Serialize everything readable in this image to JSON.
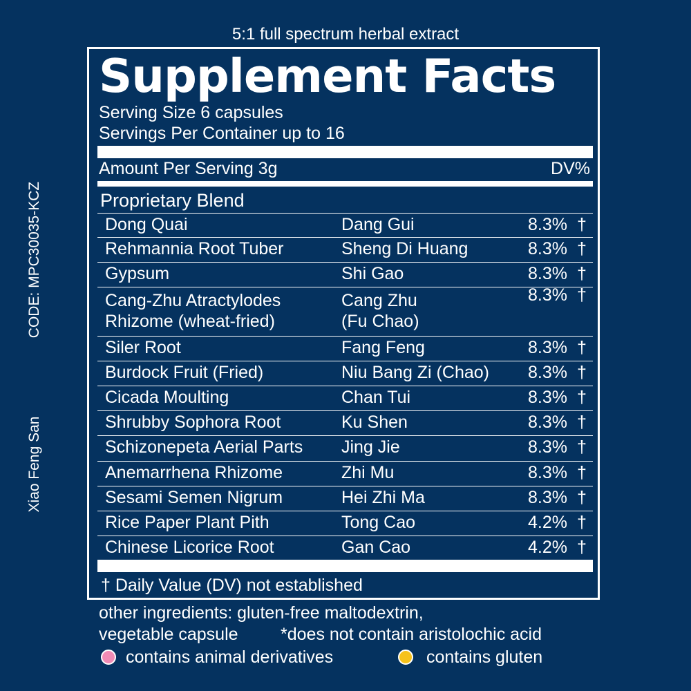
{
  "tagline": "5:1 full spectrum herbal extract",
  "side": {
    "code": "CODE: MPC30035-KCZ",
    "formula_name": "Xiao Feng San"
  },
  "panel": {
    "title": "Supplement Facts",
    "serving_size": "Serving Size 6 capsules",
    "servings_per_container": "Servings Per Container up to 16",
    "amount_per_serving": "Amount Per Serving 3g",
    "dv_header": "DV%",
    "blend_label": "Proprietary Blend",
    "ingredients": [
      {
        "name": "Dong Quai",
        "pinyin": "Dang Gui",
        "dv": "8.3%",
        "mark": "†"
      },
      {
        "name": "Rehmannia Root Tuber",
        "pinyin": "Sheng Di Huang",
        "dv": "8.3%",
        "mark": "†"
      },
      {
        "name": "Gypsum",
        "pinyin": "Shi Gao",
        "dv": "8.3%",
        "mark": "†"
      },
      {
        "name": "Cang-Zhu Atractylodes",
        "name2": "Rhizome (wheat-fried)",
        "pinyin": "Cang Zhu",
        "pinyin2": "(Fu Chao)",
        "dv": "8.3%",
        "mark": "†"
      },
      {
        "name": "Siler Root",
        "pinyin": "Fang Feng",
        "dv": "8.3%",
        "mark": "†"
      },
      {
        "name": "Burdock Fruit (Fried)",
        "pinyin": "Niu Bang Zi (Chao)",
        "dv": "8.3%",
        "mark": "†"
      },
      {
        "name": "Cicada Moulting",
        "pinyin": "Chan Tui",
        "dv": "8.3%",
        "mark": "†"
      },
      {
        "name": "Shrubby Sophora Root",
        "pinyin": "Ku Shen",
        "dv": "8.3%",
        "mark": "†"
      },
      {
        "name": "Schizonepeta Aerial Parts",
        "pinyin": "Jing Jie",
        "dv": "8.3%",
        "mark": "†"
      },
      {
        "name": "Anemarrhena Rhizome",
        "pinyin": "Zhi Mu",
        "dv": "8.3%",
        "mark": "†"
      },
      {
        "name": "Sesami Semen Nigrum",
        "pinyin": "Hei Zhi Ma",
        "dv": "8.3%",
        "mark": "†"
      },
      {
        "name": "Rice Paper Plant Pith",
        "pinyin": "Tong Cao",
        "dv": "4.2%",
        "mark": "†"
      },
      {
        "name": "Chinese Licorice Root",
        "pinyin": "Gan Cao",
        "dv": "4.2%",
        "mark": "†"
      }
    ],
    "footnote": "† Daily Value (DV) not established"
  },
  "other_ingredients": {
    "line1": "other ingredients: gluten-free maltodextrin,",
    "line2": "vegetable capsule",
    "aristolochic": "*does not contain aristolochic acid"
  },
  "legend": {
    "animal": {
      "label": "contains animal derivatives",
      "color": "#f08bb5"
    },
    "gluten": {
      "label": "contains gluten",
      "color": "#f6c21b"
    }
  },
  "colors": {
    "background": "#05325f",
    "text": "#ffffff"
  }
}
